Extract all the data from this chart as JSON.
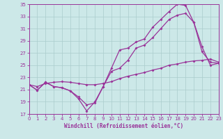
{
  "background_color": "#cce8e8",
  "grid_color": "#aacccc",
  "line_color": "#993399",
  "x_min": 0,
  "x_max": 23,
  "y_min": 17,
  "y_max": 35,
  "yticks": [
    17,
    19,
    21,
    23,
    25,
    27,
    29,
    31,
    33,
    35
  ],
  "xticks": [
    0,
    1,
    2,
    3,
    4,
    5,
    6,
    7,
    8,
    9,
    10,
    11,
    12,
    13,
    14,
    15,
    16,
    17,
    18,
    19,
    20,
    21,
    22,
    23
  ],
  "xlabel": "Windchill (Refroidissement éolien,°C)",
  "line1_x": [
    0,
    1,
    2,
    3,
    4,
    5,
    6,
    7,
    8,
    9,
    10,
    11,
    12,
    13,
    14,
    15,
    16,
    17,
    18,
    19,
    20,
    21,
    22,
    23
  ],
  "line1_y": [
    21.8,
    20.9,
    22.2,
    21.5,
    21.3,
    20.8,
    19.5,
    17.5,
    19.0,
    21.5,
    24.5,
    27.5,
    27.8,
    28.8,
    29.3,
    31.2,
    32.5,
    33.8,
    35.0,
    34.8,
    32.0,
    27.2,
    25.5,
    25.3
  ],
  "line2_x": [
    0,
    1,
    2,
    3,
    4,
    5,
    6,
    7,
    8,
    9,
    10,
    11,
    12,
    13,
    14,
    15,
    16,
    17,
    18,
    19,
    20,
    21,
    22,
    23
  ],
  "line2_y": [
    21.8,
    20.9,
    22.2,
    21.5,
    21.3,
    20.8,
    19.8,
    18.5,
    18.8,
    21.5,
    24.0,
    24.5,
    25.8,
    27.8,
    28.3,
    29.5,
    31.0,
    32.5,
    33.2,
    33.5,
    32.0,
    28.0,
    25.0,
    25.3
  ],
  "line3_x": [
    0,
    1,
    2,
    3,
    4,
    5,
    6,
    7,
    8,
    9,
    10,
    11,
    12,
    13,
    14,
    15,
    16,
    17,
    18,
    19,
    20,
    21,
    22,
    23
  ],
  "line3_y": [
    21.8,
    21.5,
    22.0,
    22.2,
    22.3,
    22.2,
    22.0,
    21.8,
    21.8,
    22.0,
    22.3,
    22.8,
    23.2,
    23.5,
    23.8,
    24.2,
    24.5,
    25.0,
    25.2,
    25.5,
    25.7,
    25.8,
    26.0,
    25.5
  ],
  "marker": "D",
  "marker_size": 2.0,
  "linewidth": 0.9,
  "tick_fontsize": 5.0,
  "xlabel_fontsize": 5.5
}
